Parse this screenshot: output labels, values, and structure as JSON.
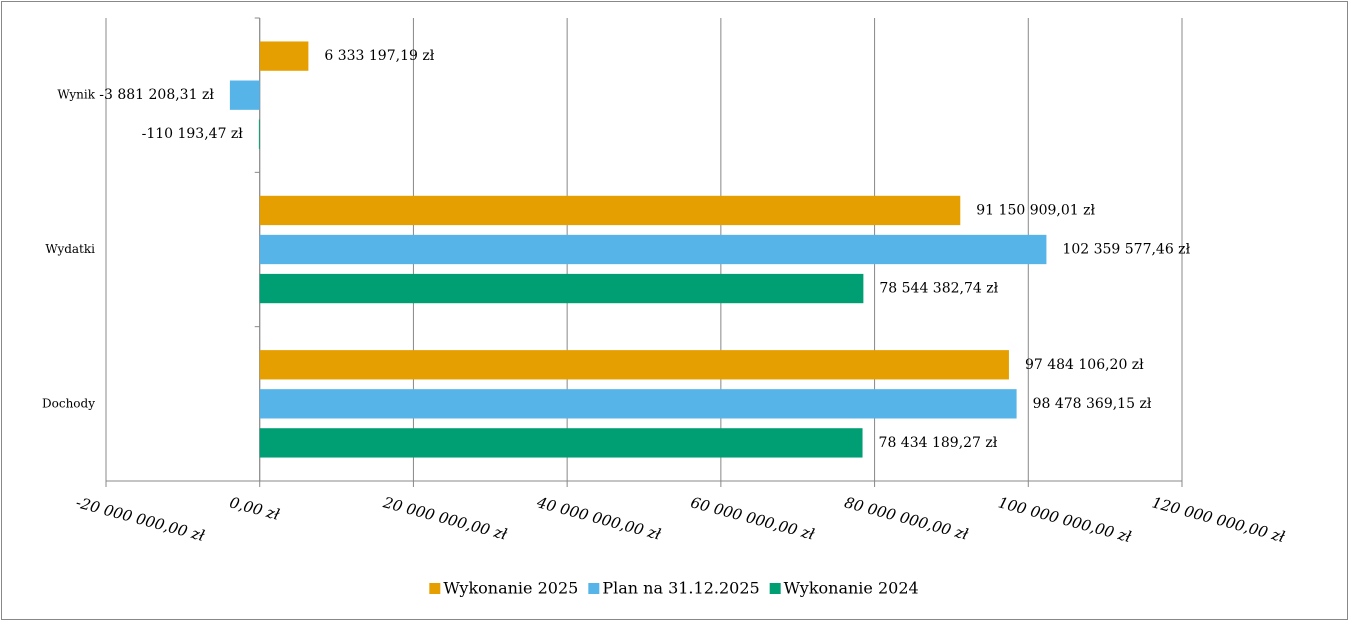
{
  "chart_data": {
    "type": "bar",
    "orientation": "horizontal",
    "categories": [
      "Wynik",
      "Wydatki",
      "Dochody"
    ],
    "series": [
      {
        "name": "Wykonanie 2025",
        "color": "#e69f00",
        "values": [
          6333197.19,
          91150909.01,
          97484106.2
        ],
        "value_labels": [
          "6 333 197,19 zł",
          "91 150 909,01 zł",
          "97 484 106,20 zł"
        ]
      },
      {
        "name": "Plan na 31.12.2025",
        "color": "#56b4e9",
        "values": [
          -3881208.31,
          102359577.46,
          98478369.15
        ],
        "value_labels": [
          "-3 881 208,31 zł",
          "102 359 577,46 zł",
          "98 478 369,15 zł"
        ]
      },
      {
        "name": "Wykonanie 2024",
        "color": "#009e73",
        "values": [
          -110193.47,
          78544382.74,
          78434189.27
        ],
        "value_labels": [
          "-110 193,47 zł",
          "78 544 382,74 zł",
          "78 434 189,27 zł"
        ]
      }
    ],
    "xlim": [
      -20000000,
      120000000
    ],
    "xticks": [
      {
        "value": -20000000,
        "label": "-20 000 000,00 zł"
      },
      {
        "value": 0,
        "label": "0,00 zł"
      },
      {
        "value": 20000000,
        "label": "20 000 000,00 zł"
      },
      {
        "value": 40000000,
        "label": "40 000 000,00 zł"
      },
      {
        "value": 60000000,
        "label": "60 000 000,00 zł"
      },
      {
        "value": 80000000,
        "label": "80 000 000,00 zł"
      },
      {
        "value": 100000000,
        "label": "100 000 000,00 zł"
      },
      {
        "value": 120000000,
        "label": "120 000 000,00 zł"
      }
    ],
    "grid": true,
    "legend": "bottom"
  }
}
